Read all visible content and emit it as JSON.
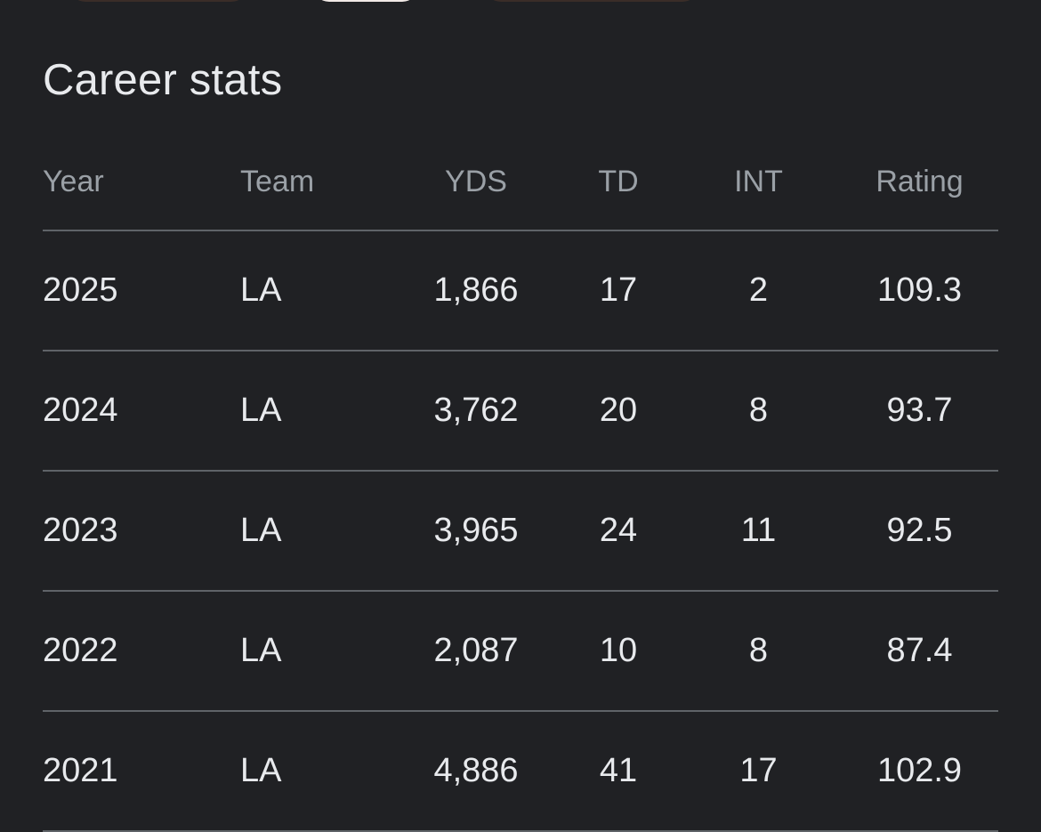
{
  "title": "Career stats",
  "colors": {
    "background": "#202124",
    "team_link": "#8ab4f8",
    "header_text": "#9aa0a6",
    "body_text": "#e8eaed",
    "divider": "#5f6368"
  },
  "table": {
    "headers": {
      "year": "Year",
      "team": "Team",
      "yds": "YDS",
      "td": "TD",
      "int": "INT",
      "rating": "Rating"
    },
    "rows": [
      {
        "year": "2025",
        "team": "LA",
        "yds": "1,866",
        "td": "17",
        "int": "2",
        "rating": "109.3"
      },
      {
        "year": "2024",
        "team": "LA",
        "yds": "3,762",
        "td": "20",
        "int": "8",
        "rating": "93.7"
      },
      {
        "year": "2023",
        "team": "LA",
        "yds": "3,965",
        "td": "24",
        "int": "11",
        "rating": "92.5"
      },
      {
        "year": "2022",
        "team": "LA",
        "yds": "2,087",
        "td": "10",
        "int": "8",
        "rating": "87.4"
      },
      {
        "year": "2021",
        "team": "LA",
        "yds": "4,886",
        "td": "41",
        "int": "17",
        "rating": "102.9"
      }
    ]
  }
}
